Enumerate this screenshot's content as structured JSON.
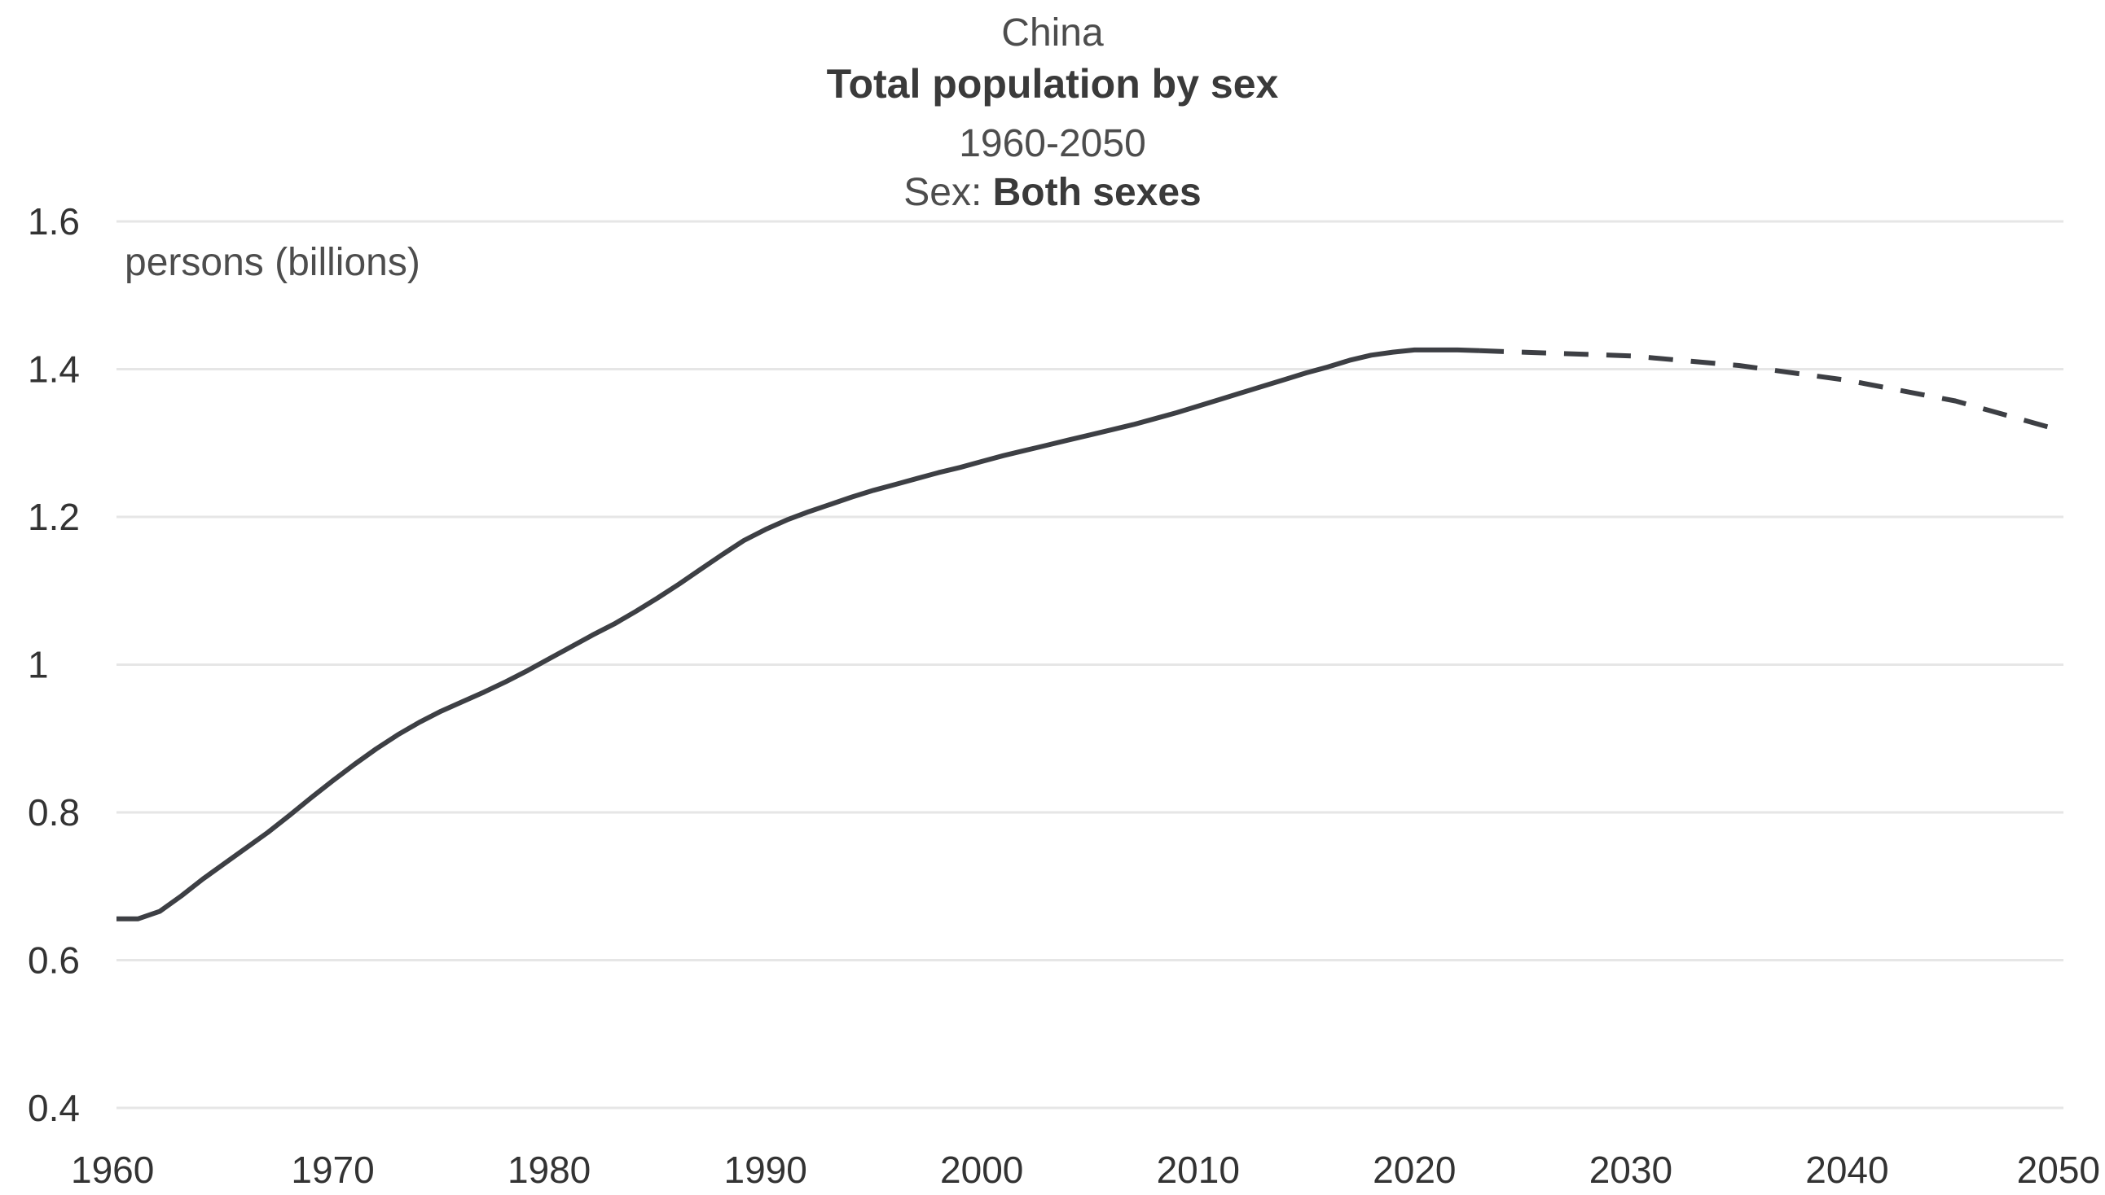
{
  "chart_data": {
    "type": "line",
    "title": "Total population by sex",
    "country": "China",
    "subtitle": "1960-2050",
    "filter_label": "Sex: ",
    "filter_value": "Both sexes",
    "ylabel": "persons (billions)",
    "xlabel": "",
    "xlim": [
      1960,
      2050
    ],
    "ylim": [
      0.4,
      1.6
    ],
    "x_ticks": [
      1960,
      1970,
      1980,
      1990,
      2000,
      2010,
      2020,
      2030,
      2040,
      2050
    ],
    "y_ticks": [
      {
        "value": 0.4,
        "label": "0.4"
      },
      {
        "value": 0.6,
        "label": "0.6"
      },
      {
        "value": 0.8,
        "label": "0.8"
      },
      {
        "value": 1.0,
        "label": "1"
      },
      {
        "value": 1.2,
        "label": "1.2"
      },
      {
        "value": 1.4,
        "label": "1.4"
      },
      {
        "value": 1.6,
        "label": "1.6"
      }
    ],
    "grid": true,
    "line_color": "#3d3f44",
    "series": [
      {
        "style": "solid",
        "x": [
          1960,
          1961,
          1962,
          1963,
          1964,
          1965,
          1966,
          1967,
          1968,
          1969,
          1970,
          1971,
          1972,
          1973,
          1974,
          1975,
          1976,
          1977,
          1978,
          1979,
          1980,
          1981,
          1982,
          1983,
          1984,
          1985,
          1986,
          1987,
          1988,
          1989,
          1990,
          1991,
          1992,
          1993,
          1994,
          1995,
          1996,
          1997,
          1998,
          1999,
          2000,
          2001,
          2002,
          2003,
          2004,
          2005,
          2006,
          2007,
          2008,
          2009,
          2010,
          2011,
          2012,
          2013,
          2014,
          2015,
          2016,
          2017,
          2018,
          2019,
          2020,
          2021,
          2022,
          2023
        ],
        "values": [
          0.656,
          0.656,
          0.666,
          0.687,
          0.71,
          0.731,
          0.752,
          0.773,
          0.796,
          0.82,
          0.843,
          0.865,
          0.886,
          0.905,
          0.922,
          0.937,
          0.95,
          0.963,
          0.977,
          0.992,
          1.008,
          1.024,
          1.04,
          1.055,
          1.072,
          1.09,
          1.109,
          1.129,
          1.149,
          1.168,
          1.183,
          1.196,
          1.207,
          1.217,
          1.227,
          1.236,
          1.244,
          1.252,
          1.26,
          1.267,
          1.275,
          1.283,
          1.29,
          1.297,
          1.304,
          1.311,
          1.318,
          1.325,
          1.333,
          1.341,
          1.35,
          1.359,
          1.368,
          1.377,
          1.386,
          1.395,
          1.403,
          1.412,
          1.419,
          1.423,
          1.426,
          1.426,
          1.426,
          1.425
        ]
      },
      {
        "style": "dashed",
        "x": [
          2023,
          2025,
          2030,
          2035,
          2040,
          2045,
          2050
        ],
        "values": [
          1.425,
          1.423,
          1.418,
          1.405,
          1.385,
          1.357,
          1.316
        ]
      }
    ]
  }
}
